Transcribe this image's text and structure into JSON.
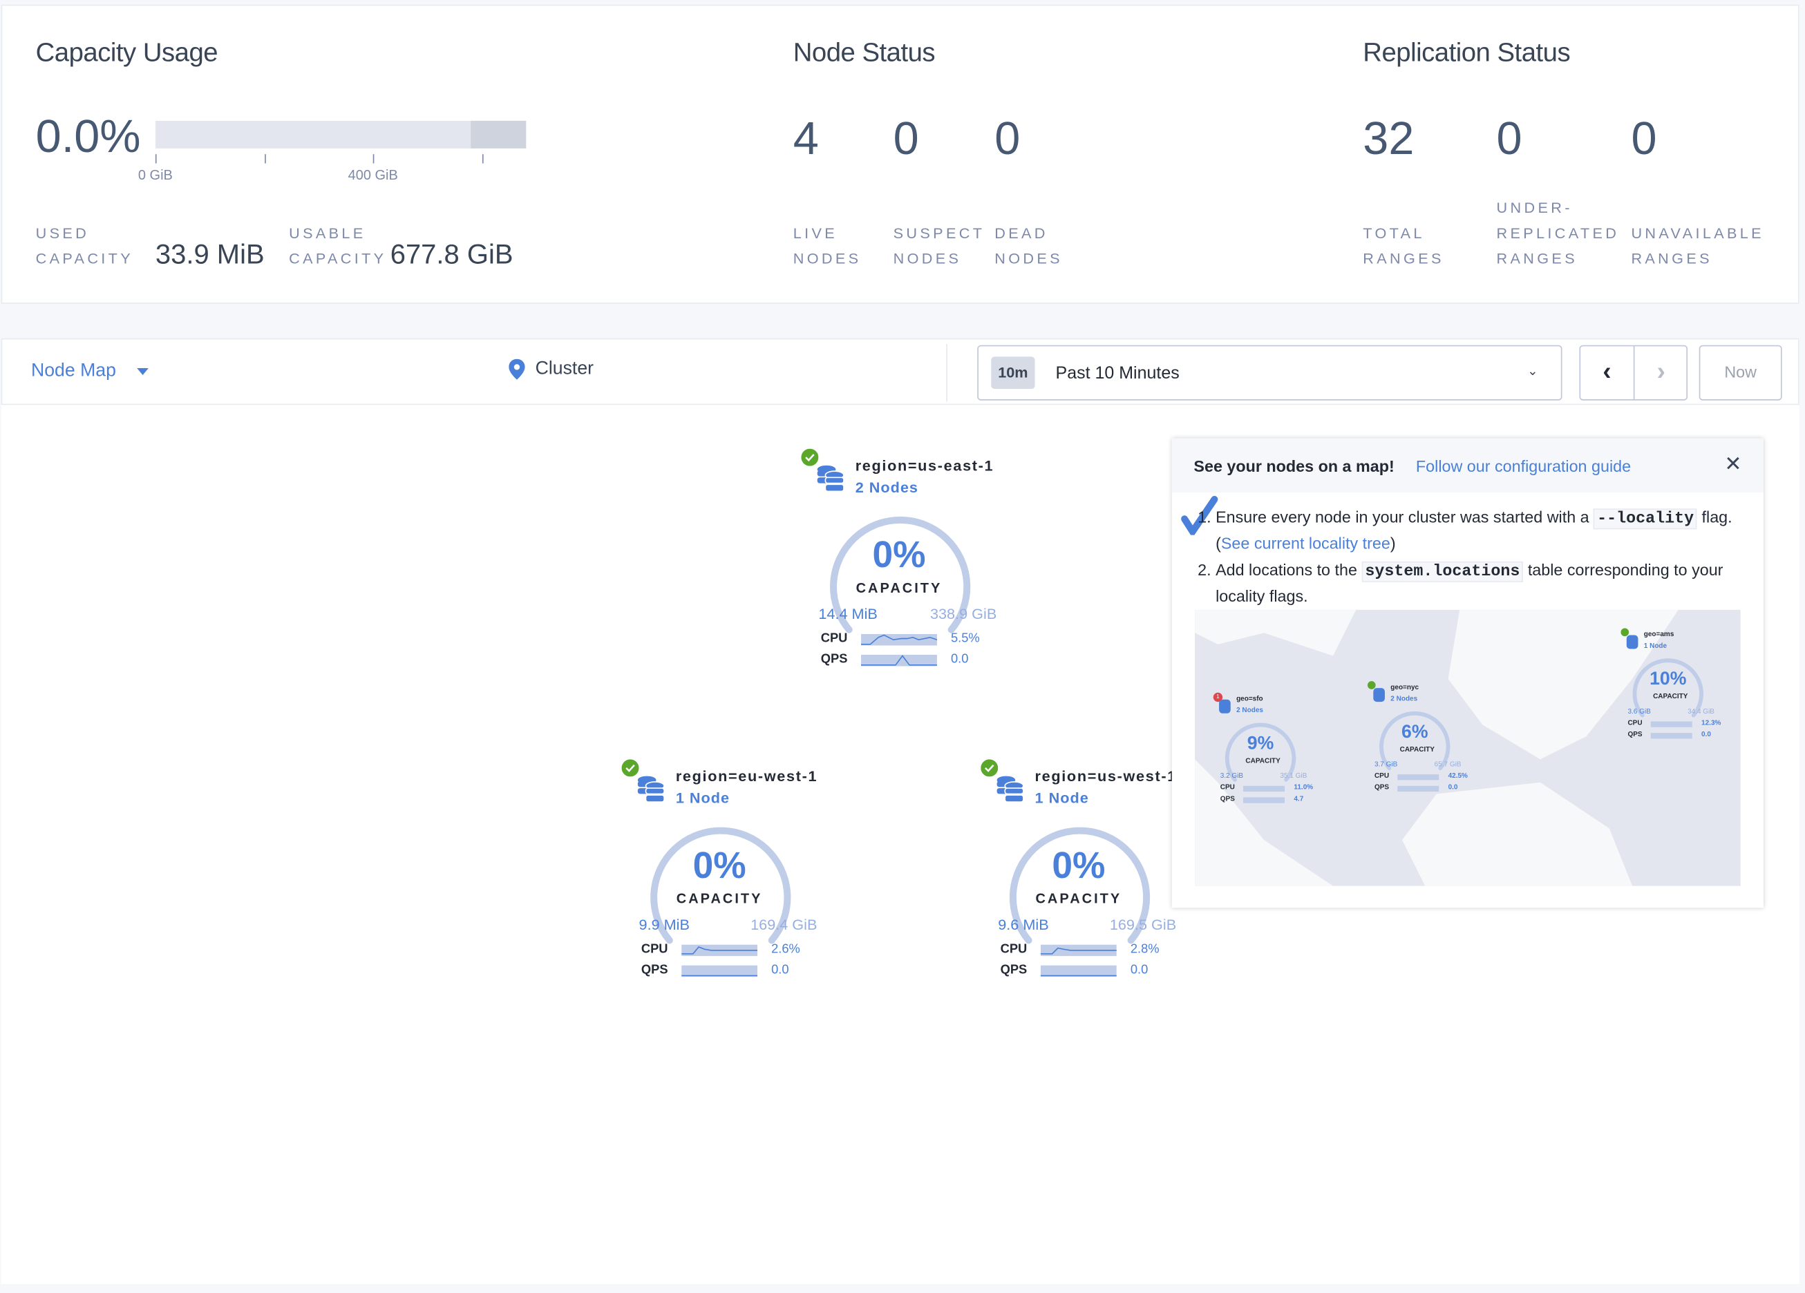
{
  "capacity": {
    "title": "Capacity Usage",
    "percent": "0.0%",
    "bar_used_fraction": 0.0,
    "ticks": [
      "0 GiB",
      "400 GiB"
    ],
    "used_label": [
      "USED",
      "CAPACITY"
    ],
    "used_value": "33.9 MiB",
    "usable_label": [
      "USABLE",
      "CAPACITY"
    ],
    "usable_value": "677.8 GiB"
  },
  "node_status": {
    "title": "Node Status",
    "items": [
      {
        "value": "4",
        "label": [
          "LIVE",
          "NODES"
        ]
      },
      {
        "value": "0",
        "label": [
          "SUSPECT",
          "NODES"
        ]
      },
      {
        "value": "0",
        "label": [
          "DEAD",
          "NODES"
        ]
      }
    ]
  },
  "replication": {
    "title": "Replication Status",
    "items": [
      {
        "value": "32",
        "label": [
          "",
          "TOTAL",
          "RANGES"
        ]
      },
      {
        "value": "0",
        "label": [
          "UNDER-",
          "REPLICATED",
          "RANGES"
        ]
      },
      {
        "value": "0",
        "label": [
          "",
          "UNAVAILABLE",
          "RANGES"
        ]
      }
    ]
  },
  "toolbar": {
    "view": "Node Map",
    "breadcrumb": "Cluster",
    "time_badge": "10m",
    "time_range": "Past 10 Minutes",
    "now": "Now"
  },
  "nodes": [
    {
      "title": "region=us-east-1",
      "count": "2 Nodes",
      "percent": "0%",
      "capacity_label": "CAPACITY",
      "used": "14.4 MiB",
      "total": "338.9 GiB",
      "cpu_label": "CPU",
      "cpu": "5.5%",
      "qps_label": "QPS",
      "qps": "0.0",
      "status": "healthy"
    },
    {
      "title": "region=eu-west-1",
      "count": "1 Node",
      "percent": "0%",
      "capacity_label": "CAPACITY",
      "used": "9.9 MiB",
      "total": "169.4 GiB",
      "cpu_label": "CPU",
      "cpu": "2.6%",
      "qps_label": "QPS",
      "qps": "0.0",
      "status": "healthy"
    },
    {
      "title": "region=us-west-1",
      "count": "1 Node",
      "percent": "0%",
      "capacity_label": "CAPACITY",
      "used": "9.6 MiB",
      "total": "169.5 GiB",
      "cpu_label": "CPU",
      "cpu": "2.8%",
      "qps_label": "QPS",
      "qps": "0.0",
      "status": "healthy"
    }
  ],
  "popup": {
    "heading": "See your nodes on a map!",
    "guide_link": "Follow our configuration guide",
    "step1_pre": "Ensure every node in your cluster was started with a ",
    "step1_code": "--locality",
    "step1_mid": " flag. (",
    "step1_link": "See current locality tree",
    "step1_post": ")",
    "step2_pre": "Add locations to the ",
    "step2_code": "system.locations",
    "step2_post": " table corresponding to your locality flags.",
    "map_nodes": [
      {
        "title": "geo=sfo",
        "count": "2 Nodes",
        "percent": "9%",
        "capacity_label": "CAPACITY",
        "used": "3.2 GiB",
        "total": "35.1 GiB",
        "cpu": "11.0%",
        "qps": "4.7",
        "alert": "1"
      },
      {
        "title": "geo=nyc",
        "count": "2 Nodes",
        "percent": "6%",
        "capacity_label": "CAPACITY",
        "used": "3.7 GiB",
        "total": "65.7 GiB",
        "cpu": "42.5%",
        "qps": "0.0"
      },
      {
        "title": "geo=ams",
        "count": "1 Node",
        "percent": "10%",
        "capacity_label": "CAPACITY",
        "used": "3.6 GiB",
        "total": "34.4 GiB",
        "cpu": "12.3%",
        "qps": "0.0"
      }
    ],
    "mini_cpu_label": "CPU",
    "mini_qps_label": "QPS"
  },
  "colors": {
    "accent": "#4a80d9",
    "healthy": "#5ba72c",
    "alert": "#e0474c",
    "gauge": "#bfcde9"
  }
}
